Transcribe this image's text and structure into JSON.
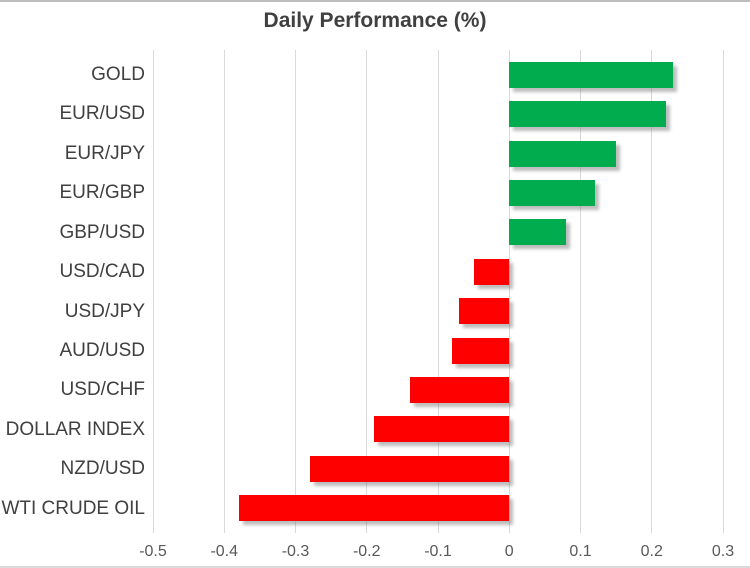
{
  "header": {
    "title": "Daily Performance (%)"
  },
  "chart_data": {
    "type": "bar",
    "orientation": "horizontal",
    "title": "Daily Performance (%)",
    "categories": [
      "GOLD",
      "EUR/USD",
      "EUR/JPY",
      "EUR/GBP",
      "GBP/USD",
      "USD/CAD",
      "USD/JPY",
      "AUD/USD",
      "USD/CHF",
      "DOLLAR INDEX",
      "NZD/USD",
      "WTI CRUDE OIL"
    ],
    "values": [
      0.23,
      0.22,
      0.15,
      0.12,
      0.08,
      -0.05,
      -0.07,
      -0.08,
      -0.14,
      -0.19,
      -0.28,
      -0.38
    ],
    "xlabel": "",
    "ylabel": "",
    "xlim": [
      -0.5,
      0.3
    ],
    "x_ticks": [
      -0.5,
      -0.4,
      -0.3,
      -0.2,
      -0.1,
      0,
      0.1,
      0.2,
      0.3
    ],
    "x_tick_labels": [
      "-0.5",
      "-0.4",
      "-0.3",
      "-0.2",
      "-0.1",
      "0",
      "0.1",
      "0.2",
      "0.3"
    ],
    "grid": "vertical-gridlines-on",
    "legend": "none",
    "colors": {
      "positive_bar": "#00AC4E",
      "negative_bar": "#FF0000",
      "gridline": "#D9D9D9",
      "title_text": "#404040",
      "category_text": "#404040",
      "tick_text": "#595959",
      "top_border": "#BDBDBD",
      "bottom_border": "#D9D9D9",
      "background": "#FFFFFF"
    }
  }
}
